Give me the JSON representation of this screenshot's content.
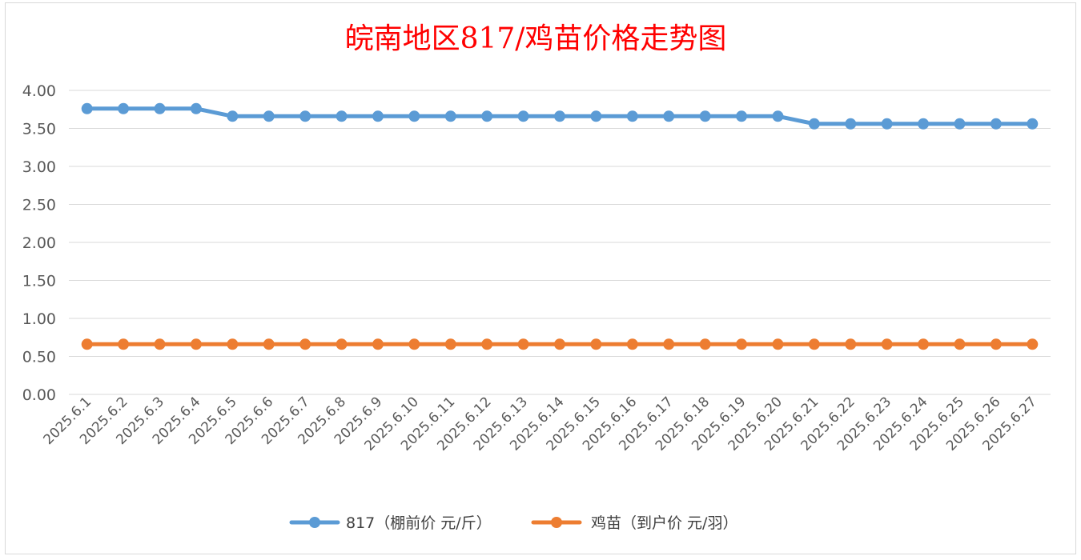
{
  "chart_data": {
    "type": "line",
    "title": "皖南地区817/鸡苗价格走势图",
    "xlabel": "",
    "ylabel": "",
    "ylim": [
      0,
      4
    ],
    "ytick_labels": [
      "0.00",
      "0.50",
      "1.00",
      "1.50",
      "2.00",
      "2.50",
      "3.00",
      "3.50",
      "4.00"
    ],
    "grid": true,
    "legend_position": "bottom",
    "categories": [
      "2025.6.1",
      "2025.6.2",
      "2025.6.3",
      "2025.6.4",
      "2025.6.5",
      "2025.6.6",
      "2025.6.7",
      "2025.6.8",
      "2025.6.9",
      "2025.6.10",
      "2025.6.11",
      "2025.6.12",
      "2025.6.13",
      "2025.6.14",
      "2025.6.15",
      "2025.6.16",
      "2025.6.17",
      "2025.6.18",
      "2025.6.19",
      "2025.6.20",
      "2025.6.21",
      "2025.6.22",
      "2025.6.23",
      "2025.6.24",
      "2025.6.25",
      "2025.6.26",
      "2025.6.27"
    ],
    "series": [
      {
        "name": "817（棚前价 元/斤）",
        "color": "#5b9bd5",
        "values": [
          3.76,
          3.76,
          3.76,
          3.76,
          3.66,
          3.66,
          3.66,
          3.66,
          3.66,
          3.66,
          3.66,
          3.66,
          3.66,
          3.66,
          3.66,
          3.66,
          3.66,
          3.66,
          3.66,
          3.66,
          3.56,
          3.56,
          3.56,
          3.56,
          3.56,
          3.56,
          3.56
        ]
      },
      {
        "name": "鸡苗（到户价 元/羽）",
        "color": "#ed7d31",
        "values": [
          0.66,
          0.66,
          0.66,
          0.66,
          0.66,
          0.66,
          0.66,
          0.66,
          0.66,
          0.66,
          0.66,
          0.66,
          0.66,
          0.66,
          0.66,
          0.66,
          0.66,
          0.66,
          0.66,
          0.66,
          0.66,
          0.66,
          0.66,
          0.66,
          0.66,
          0.66,
          0.66
        ]
      }
    ]
  }
}
